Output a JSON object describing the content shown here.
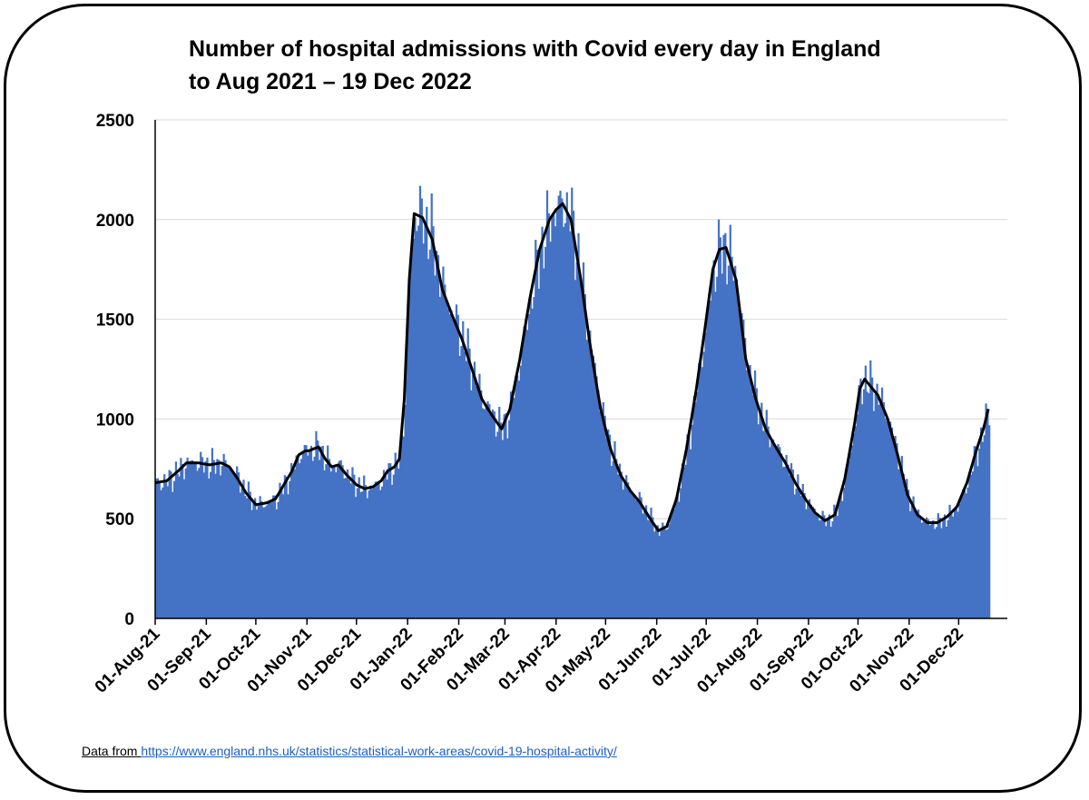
{
  "chart_data": {
    "type": "bar",
    "title_line1": "Number of hospital admissions with Covid every day in England",
    "title_line2": "to Aug 2021 – 19 Dec 2022",
    "x_start": "2021-08-01",
    "x_end": "2022-12-19",
    "ylim": [
      0,
      2500
    ],
    "yticks": [
      0,
      500,
      1000,
      1500,
      2000,
      2500
    ],
    "xtick_labels": [
      "01-Aug-21",
      "01-Sep-21",
      "01-Oct-21",
      "01-Nov-21",
      "01-Dec-21",
      "01-Jan-22",
      "01-Feb-22",
      "01-Mar-22",
      "01-Apr-22",
      "01-May-22",
      "01-Jun-22",
      "01-Jul-22",
      "01-Aug-22",
      "01-Sep-22",
      "01-Oct-22",
      "01-Nov-22",
      "01-Dec-22"
    ],
    "xtick_dates": [
      "2021-08-01",
      "2021-09-01",
      "2021-10-01",
      "2021-11-01",
      "2021-12-01",
      "2022-01-01",
      "2022-02-01",
      "2022-03-01",
      "2022-04-01",
      "2022-05-01",
      "2022-06-01",
      "2022-07-01",
      "2022-08-01",
      "2022-09-01",
      "2022-10-01",
      "2022-11-01",
      "2022-12-01"
    ],
    "grid": true,
    "series": [
      {
        "kind": "bars",
        "color": "#4472C4",
        "trend_dates": [
          "2021-08-01",
          "2021-08-08",
          "2021-08-15",
          "2021-08-20",
          "2021-08-27",
          "2021-09-03",
          "2021-09-10",
          "2021-09-15",
          "2021-09-20",
          "2021-09-25",
          "2021-10-01",
          "2021-10-08",
          "2021-10-13",
          "2021-10-18",
          "2021-10-23",
          "2021-10-27",
          "2021-10-31",
          "2021-11-02",
          "2021-11-05",
          "2021-11-08",
          "2021-11-12",
          "2021-11-16",
          "2021-11-20",
          "2021-11-25",
          "2021-12-01",
          "2021-12-06",
          "2021-12-11",
          "2021-12-16",
          "2021-12-20",
          "2021-12-24",
          "2021-12-27",
          "2021-12-30",
          "2022-01-02",
          "2022-01-05",
          "2022-01-10",
          "2022-01-16",
          "2022-01-22",
          "2022-01-28",
          "2022-02-03",
          "2022-02-09",
          "2022-02-15",
          "2022-02-21",
          "2022-02-27",
          "2022-03-04",
          "2022-03-10",
          "2022-03-16",
          "2022-03-22",
          "2022-03-28",
          "2022-04-01",
          "2022-04-05",
          "2022-04-10",
          "2022-04-16",
          "2022-04-22",
          "2022-04-28",
          "2022-05-04",
          "2022-05-10",
          "2022-05-16",
          "2022-05-22",
          "2022-05-28",
          "2022-06-02",
          "2022-06-07",
          "2022-06-13",
          "2022-06-19",
          "2022-06-25",
          "2022-07-01",
          "2022-07-05",
          "2022-07-09",
          "2022-07-13",
          "2022-07-19",
          "2022-07-25",
          "2022-07-31",
          "2022-08-06",
          "2022-08-12",
          "2022-08-18",
          "2022-08-24",
          "2022-08-30",
          "2022-09-05",
          "2022-09-11",
          "2022-09-17",
          "2022-09-23",
          "2022-09-29",
          "2022-10-02",
          "2022-10-05",
          "2022-10-09",
          "2022-10-13",
          "2022-10-19",
          "2022-10-25",
          "2022-10-31",
          "2022-11-06",
          "2022-11-12",
          "2022-11-18",
          "2022-11-24",
          "2022-11-30",
          "2022-12-06",
          "2022-12-12",
          "2022-12-16",
          "2022-12-19"
        ],
        "trend_values": [
          680,
          690,
          740,
          780,
          780,
          770,
          780,
          760,
          700,
          630,
          570,
          580,
          600,
          670,
          740,
          820,
          840,
          840,
          850,
          860,
          800,
          760,
          770,
          720,
          670,
          650,
          660,
          690,
          740,
          760,
          800,
          1100,
          1700,
          2030,
          2010,
          1900,
          1650,
          1520,
          1400,
          1250,
          1100,
          1020,
          950,
          1050,
          1300,
          1600,
          1850,
          2000,
          2050,
          2080,
          2000,
          1700,
          1350,
          1050,
          850,
          720,
          640,
          580,
          500,
          440,
          460,
          600,
          850,
          1150,
          1500,
          1750,
          1850,
          1860,
          1700,
          1300,
          1100,
          950,
          860,
          780,
          680,
          600,
          530,
          490,
          520,
          700,
          980,
          1150,
          1200,
          1160,
          1120,
          1000,
          820,
          620,
          520,
          480,
          480,
          510,
          560,
          680,
          850,
          950,
          1050
        ]
      },
      {
        "kind": "line",
        "color": "#000000"
      }
    ]
  },
  "source": {
    "label": "Data from ",
    "url": "https://www.england.nhs.uk/statistics/statistical-work-areas/covid-19-hospital-activity/"
  }
}
